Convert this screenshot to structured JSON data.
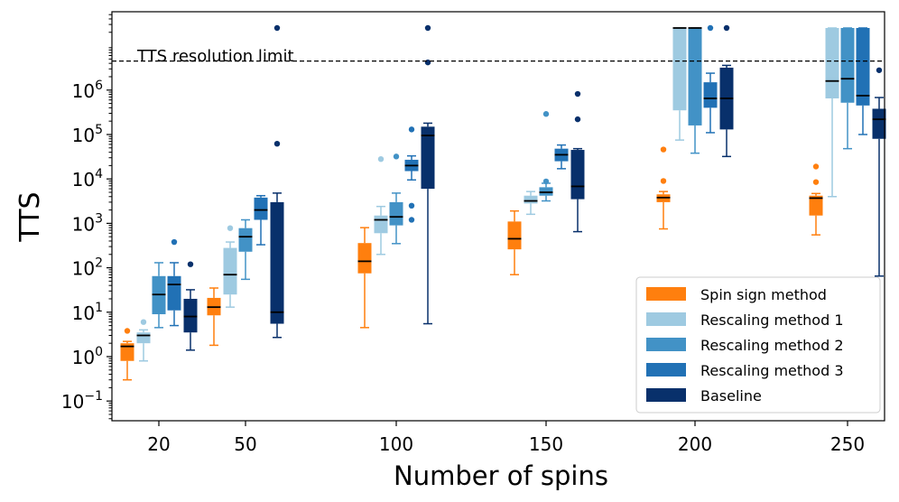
{
  "chart_data": {
    "type": "box",
    "xlabel": "Number of spins",
    "ylabel": "TTS",
    "yscale": "log",
    "ylim": [
      0.04,
      50000000
    ],
    "categories": [
      "20",
      "50",
      "100",
      "150",
      "200",
      "250"
    ],
    "y_ticks": [
      {
        "value": 0.1,
        "mant": "10",
        "exp": "−1"
      },
      {
        "value": 1,
        "mant": "10",
        "exp": "0"
      },
      {
        "value": 10,
        "mant": "10",
        "exp": "1"
      },
      {
        "value": 100,
        "mant": "10",
        "exp": "2"
      },
      {
        "value": 1000,
        "mant": "10",
        "exp": "3"
      },
      {
        "value": 10000,
        "mant": "10",
        "exp": "4"
      },
      {
        "value": 100000,
        "mant": "10",
        "exp": "5"
      },
      {
        "value": 1000000,
        "mant": "10",
        "exp": "6"
      }
    ],
    "resolution_limit": {
      "value": 4500000,
      "label": "TTS resolution limit"
    },
    "legend_position": "lower-right",
    "series": [
      {
        "name": "Spin sign method",
        "color": "#ff7f0e",
        "boxes": [
          {
            "whislo": 0.3,
            "q1": 0.8,
            "med": 1.7,
            "q3": 2.0,
            "whishi": 2.2,
            "fliers": [
              3.8
            ]
          },
          {
            "whislo": 1.8,
            "q1": 8.5,
            "med": 13,
            "q3": 21,
            "whishi": 35,
            "fliers": []
          },
          {
            "whislo": 4.5,
            "q1": 75,
            "med": 140,
            "q3": 360,
            "whishi": 800,
            "fliers": []
          },
          {
            "whislo": 70,
            "q1": 260,
            "med": 450,
            "q3": 1100,
            "whishi": 1900,
            "fliers": []
          },
          {
            "whislo": 750,
            "q1": 3000,
            "med": 3800,
            "q3": 4500,
            "whishi": 5200,
            "fliers": [
              9000,
              46000
            ]
          },
          {
            "whislo": 550,
            "q1": 1500,
            "med": 3700,
            "q3": 4200,
            "whishi": 4700,
            "fliers": [
              8500,
              19000
            ]
          }
        ]
      },
      {
        "name": "Rescaling method 1",
        "color": "#9ecae1",
        "boxes": [
          {
            "whislo": 0.8,
            "q1": 2.0,
            "med": 3.0,
            "q3": 3.5,
            "whishi": 4.0,
            "fliers": [
              6.0
            ]
          },
          {
            "whislo": 13,
            "q1": 25,
            "med": 70,
            "q3": 280,
            "whishi": 380,
            "fliers": [
              780
            ]
          },
          {
            "whislo": 200,
            "q1": 600,
            "med": 1200,
            "q3": 1500,
            "whishi": 2400,
            "fliers": [
              28000
            ]
          },
          {
            "whislo": 1600,
            "q1": 2800,
            "med": 3200,
            "q3": 4200,
            "whishi": 5200,
            "fliers": []
          },
          {
            "whislo": 75000,
            "q1": 350000,
            "med": 25000000,
            "q3": 25000000,
            "whishi": 25000000,
            "fliers": []
          },
          {
            "whislo": 4000,
            "q1": 650000,
            "med": 1600000,
            "q3": 25000000,
            "whishi": 25000000,
            "fliers": []
          }
        ]
      },
      {
        "name": "Rescaling method 2",
        "color": "#4292c6",
        "boxes": [
          {
            "whislo": 4.5,
            "q1": 9,
            "med": 25,
            "q3": 65,
            "whishi": 130,
            "fliers": []
          },
          {
            "whislo": 55,
            "q1": 230,
            "med": 500,
            "q3": 780,
            "whishi": 1200,
            "fliers": []
          },
          {
            "whislo": 350,
            "q1": 900,
            "med": 1400,
            "q3": 3000,
            "whishi": 4800,
            "fliers": [
              32000
            ]
          },
          {
            "whislo": 3200,
            "q1": 4200,
            "med": 5000,
            "q3": 6500,
            "whishi": 8000,
            "fliers": [
              8800,
              290000
            ]
          },
          {
            "whislo": 38000,
            "q1": 160000,
            "med": 25000000,
            "q3": 25000000,
            "whishi": 25000000,
            "fliers": []
          },
          {
            "whislo": 48000,
            "q1": 520000,
            "med": 1800000,
            "q3": 25000000,
            "whishi": 25000000,
            "fliers": []
          }
        ]
      },
      {
        "name": "Rescaling method 3",
        "color": "#2171b5",
        "boxes": [
          {
            "whislo": 5,
            "q1": 11,
            "med": 42,
            "q3": 65,
            "whishi": 130,
            "fliers": [
              380
            ]
          },
          {
            "whislo": 330,
            "q1": 1200,
            "med": 2000,
            "q3": 3800,
            "whishi": 4200,
            "fliers": []
          },
          {
            "whislo": 9500,
            "q1": 15000,
            "med": 20000,
            "q3": 27000,
            "whishi": 33000,
            "fliers": [
              130000,
              2500,
              1200
            ]
          },
          {
            "whislo": 17000,
            "q1": 25000,
            "med": 35000,
            "q3": 48000,
            "whishi": 58000,
            "fliers": []
          },
          {
            "whislo": 110000,
            "q1": 400000,
            "med": 650000,
            "q3": 1500000,
            "whishi": 2400000,
            "fliers": [
              25000000
            ]
          },
          {
            "whislo": 100000,
            "q1": 450000,
            "med": 750000,
            "q3": 25000000,
            "whishi": 25000000,
            "fliers": []
          }
        ]
      },
      {
        "name": "Baseline",
        "color": "#08306b",
        "boxes": [
          {
            "whislo": 1.4,
            "q1": 3.5,
            "med": 8,
            "q3": 20,
            "whishi": 32,
            "fliers": [
              120
            ]
          },
          {
            "whislo": 2.7,
            "q1": 5.5,
            "med": 10,
            "q3": 3000,
            "whishi": 4800,
            "fliers": [
              62000,
              25000000
            ]
          },
          {
            "whislo": 5.5,
            "q1": 6000,
            "med": 95000,
            "q3": 150000,
            "whishi": 180000,
            "fliers": [
              4200000,
              25000000
            ]
          },
          {
            "whislo": 650,
            "q1": 3500,
            "med": 6800,
            "q3": 45000,
            "whishi": 48000,
            "fliers": [
              220000,
              820000
            ]
          },
          {
            "whislo": 32000,
            "q1": 130000,
            "med": 650000,
            "q3": 3200000,
            "whishi": 3600000,
            "fliers": [
              25000000
            ]
          },
          {
            "whislo": 65,
            "q1": 80000,
            "med": 220000,
            "q3": 380000,
            "whishi": 680000,
            "fliers": [
              2800000
            ]
          }
        ]
      }
    ]
  }
}
